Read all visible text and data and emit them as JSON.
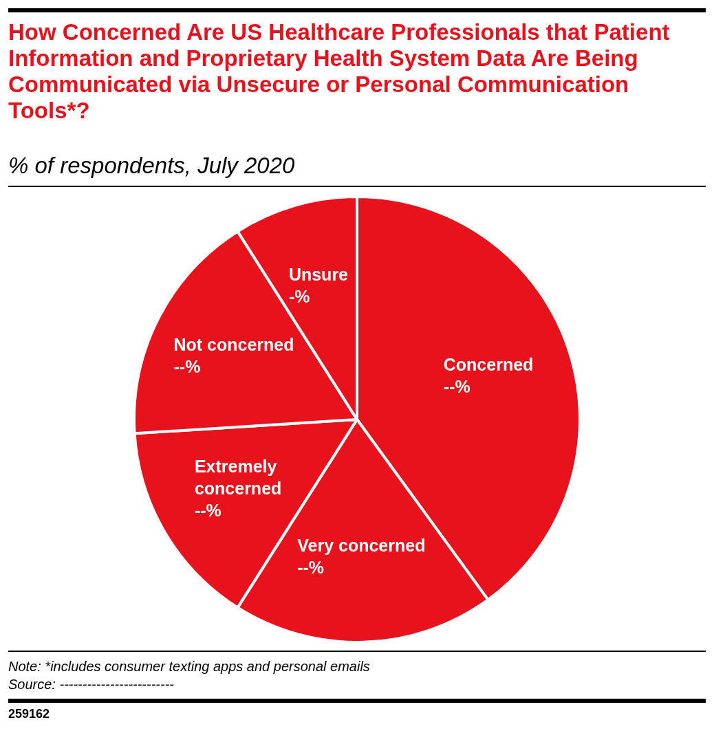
{
  "chart_data": {
    "type": "pie",
    "title": "How Concerned Are US Healthcare Professionals that Patient Information and Proprietary Health System Data Are Being Communicated via Unsecure or Personal Communication Tools*?",
    "subtitle": "% of respondents, July 2020",
    "categories": [
      "Concerned",
      "Very concerned",
      "Extremely concerned",
      "Not concerned",
      "Unsure"
    ],
    "values": [
      40,
      19,
      15,
      17,
      9
    ],
    "colors": [
      "#e8121d",
      "#e8121d",
      "#e8121d",
      "#e8121d",
      "#e8121d"
    ],
    "value_labels": [
      "--%",
      "--%",
      "--%",
      "--%",
      "-%"
    ],
    "legend": false,
    "annotations": [
      "Note: *includes consumer texting apps and personal emails",
      "Source: -------------------------",
      "259162"
    ]
  }
}
